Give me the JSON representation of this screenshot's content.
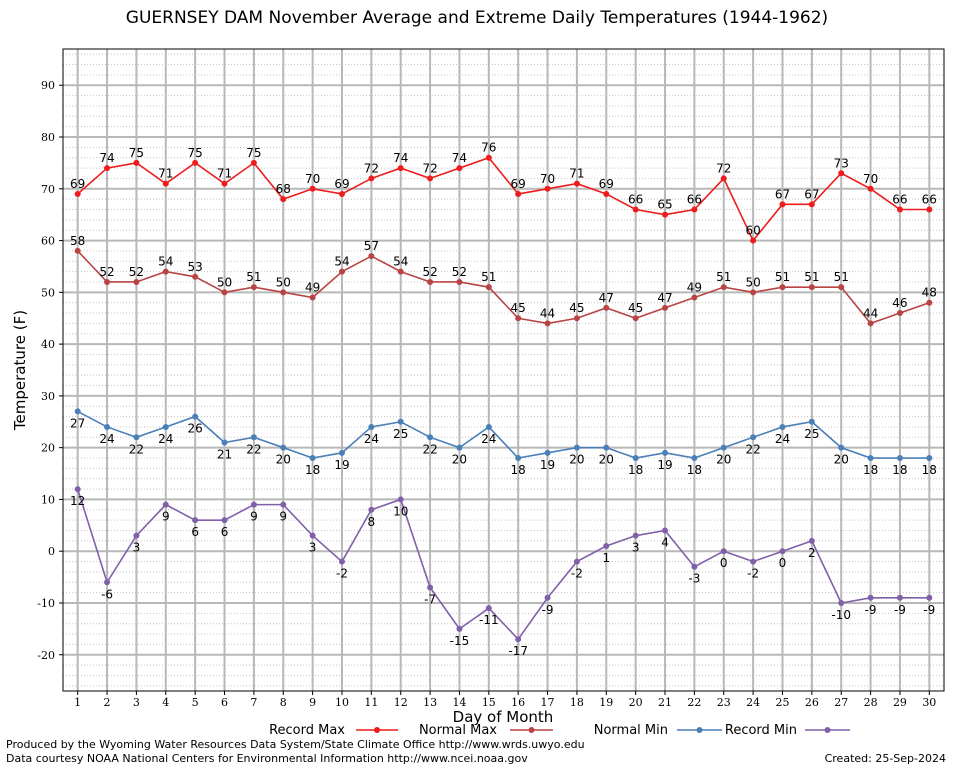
{
  "chart_data": {
    "type": "line",
    "title": "GUERNSEY DAM November Average and Extreme Daily Temperatures (1944-1962)",
    "xlabel": "Day of Month",
    "ylabel": "Temperature (F)",
    "xlim": [
      0.5,
      30.5
    ],
    "ylim": [
      -27,
      97
    ],
    "yticks": [
      -20,
      -10,
      0,
      10,
      20,
      30,
      40,
      50,
      60,
      70,
      80,
      90
    ],
    "x": [
      1,
      2,
      3,
      4,
      5,
      6,
      7,
      8,
      9,
      10,
      11,
      12,
      13,
      14,
      15,
      16,
      17,
      18,
      19,
      20,
      21,
      22,
      23,
      24,
      25,
      26,
      27,
      28,
      29,
      30
    ],
    "grid": true,
    "legend_position": "bottom",
    "series": [
      {
        "name": "Record Max",
        "color": "#ee1c1c",
        "label_pos": "above",
        "values": [
          69,
          74,
          75,
          71,
          75,
          71,
          75,
          68,
          70,
          69,
          72,
          74,
          72,
          74,
          76,
          69,
          70,
          71,
          69,
          66,
          65,
          66,
          72,
          60,
          67,
          67,
          73,
          70,
          66,
          66
        ]
      },
      {
        "name": "Normal Max",
        "color": "#b84444",
        "label_pos": "above",
        "values": [
          58,
          52,
          52,
          54,
          53,
          50,
          51,
          50,
          49,
          54,
          57,
          54,
          52,
          52,
          51,
          45,
          44,
          45,
          47,
          45,
          47,
          49,
          51,
          50,
          51,
          51,
          51,
          44,
          46,
          48
        ]
      },
      {
        "name": "Normal Min",
        "color": "#4a7fb8",
        "label_pos": "below",
        "values": [
          27,
          24,
          22,
          24,
          26,
          21,
          22,
          20,
          18,
          19,
          24,
          25,
          22,
          20,
          24,
          18,
          19,
          20,
          20,
          18,
          19,
          18,
          20,
          22,
          24,
          25,
          20,
          18,
          18,
          18
        ]
      },
      {
        "name": "Record Min",
        "color": "#8060a8",
        "label_pos": "below",
        "values": [
          12,
          -6,
          3,
          9,
          6,
          6,
          9,
          9,
          3,
          -2,
          8,
          10,
          -7,
          -15,
          -11,
          -17,
          -9,
          -2,
          1,
          3,
          4,
          -3,
          0,
          -2,
          0,
          2,
          -10,
          -9,
          -9,
          -9
        ]
      }
    ]
  },
  "footer": {
    "credit_1": "Produced by the Wyoming Water Resources Data System/State Climate Office http://www.wrds.uwyo.edu",
    "credit_2": "Data courtesy NOAA National Centers for Environmental Information http://www.ncei.noaa.gov",
    "created": "Created:  25-Sep-2024"
  }
}
